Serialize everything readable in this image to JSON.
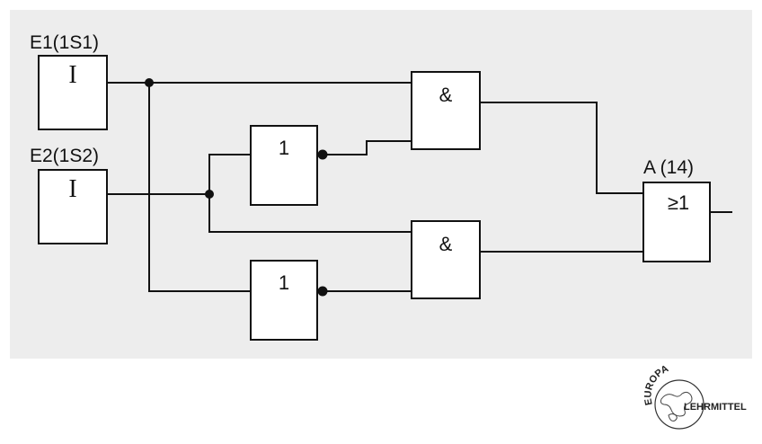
{
  "inputs": [
    {
      "label": "E1(1S1)",
      "symbol": "I"
    },
    {
      "label": "E2(1S2)",
      "symbol": "I"
    }
  ],
  "gates": {
    "not_upper": "1",
    "not_lower": "1",
    "and_upper": "&",
    "and_lower": "&",
    "or_output": "≥1"
  },
  "output": {
    "label": "A (14)"
  },
  "logo": {
    "arc_text": "EUROPA",
    "side_text": "LEHRMITTEL"
  }
}
